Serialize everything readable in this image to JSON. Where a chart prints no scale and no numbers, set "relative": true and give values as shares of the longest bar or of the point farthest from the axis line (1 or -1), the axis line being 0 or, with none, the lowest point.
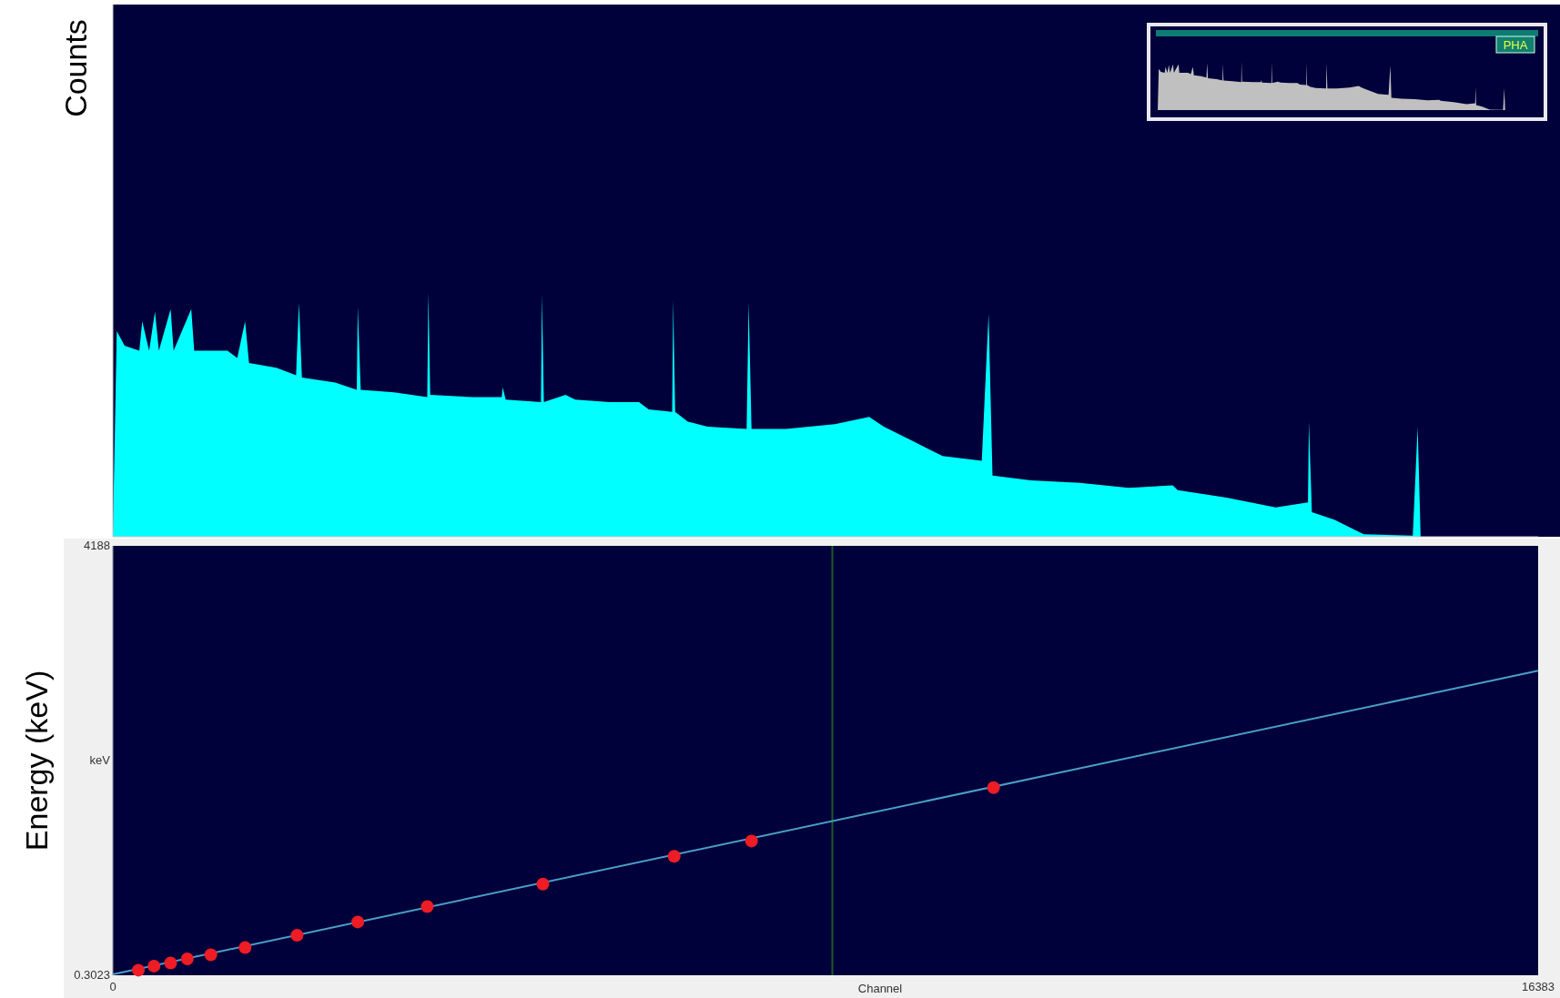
{
  "chart_data": [
    {
      "type": "area",
      "relative": true,
      "ylabel": "Counts",
      "xlim": [
        0,
        16383
      ],
      "tick_labels": false,
      "annotations": [
        "PHA"
      ],
      "x": [
        0,
        45,
        135,
        304,
        338,
        417,
        484,
        529,
        664,
        698,
        901,
        935,
        1317,
        1430,
        1520,
        1565,
        1880,
        2106,
        2139,
        2173,
        2556,
        2804,
        2815,
        2849,
        3232,
        3614,
        3626,
        3648,
        4132,
        4470,
        4481,
        4515,
        4921,
        4932,
        4954,
        5202,
        5315,
        5709,
        6047,
        6159,
        6429,
        6441,
        6463,
        6610,
        6835,
        7285,
        7308,
        7341,
        7736,
        8299,
        8693,
        8862,
        9199,
        9537,
        9988,
        10066,
        10111,
        10551,
        11114,
        11677,
        12183,
        12239,
        12802,
        13366,
        13737,
        13748,
        13782,
        14041,
        14266,
        14379,
        14942,
        14998,
        15032,
        16383
      ],
      "series": [
        {
          "color": "#00ffff",
          "values": [
            0,
            0.84,
            0.78,
            0.76,
            0.88,
            0.76,
            0.92,
            0.76,
            0.93,
            0.76,
            0.93,
            0.76,
            0.76,
            0.73,
            0.88,
            0.71,
            0.69,
            0.66,
            0.955,
            0.65,
            0.63,
            0.6,
            0.94,
            0.6,
            0.59,
            0.57,
            1,
            0.58,
            0.57,
            0.57,
            0.61,
            0.56,
            0.55,
            0.99,
            0.55,
            0.58,
            0.56,
            0.55,
            0.55,
            0.52,
            0.51,
            0.97,
            0.51,
            0.47,
            0.45,
            0.44,
            0.955,
            0.44,
            0.44,
            0.46,
            0.49,
            0.45,
            0.39,
            0.33,
            0.31,
            0.91,
            0.25,
            0.23,
            0.22,
            0.2,
            0.21,
            0.19,
            0.16,
            0.12,
            0.14,
            0.47,
            0.1,
            0.07,
            0.03,
            0.01,
            0.005,
            0.45,
            0,
            0
          ]
        }
      ]
    },
    {
      "type": "scatter",
      "xlabel": "Channel",
      "ylabel": "Energy (keV)",
      "annotations": [
        "keV"
      ],
      "xlim": [
        0,
        16383
      ],
      "xticks": [
        0,
        16383
      ],
      "ylim": [
        0.3023,
        4188
      ],
      "yticks": [
        0.3023,
        4188
      ],
      "ref_lines": [
        {
          "axis": "x",
          "value": 8270,
          "color": "#1f5a2a"
        }
      ],
      "series": [
        {
          "type": "line",
          "marker": "none",
          "color": "#4a9fc8",
          "x": [
            0,
            16383
          ],
          "values": [
            10,
            2970
          ]
        },
        {
          "type": "scatter",
          "marker": "circle",
          "color": "#ee1c25",
          "x": [
            293,
            473,
            664,
            856,
            1126,
            1520,
            2117,
            2815,
            3614,
            4943,
            6452,
            7341,
            10123
          ],
          "values": [
            50,
            90,
            120,
            160,
            200,
            270,
            390,
            520,
            670,
            890,
            1160,
            1310,
            1830
          ]
        }
      ]
    }
  ]
}
